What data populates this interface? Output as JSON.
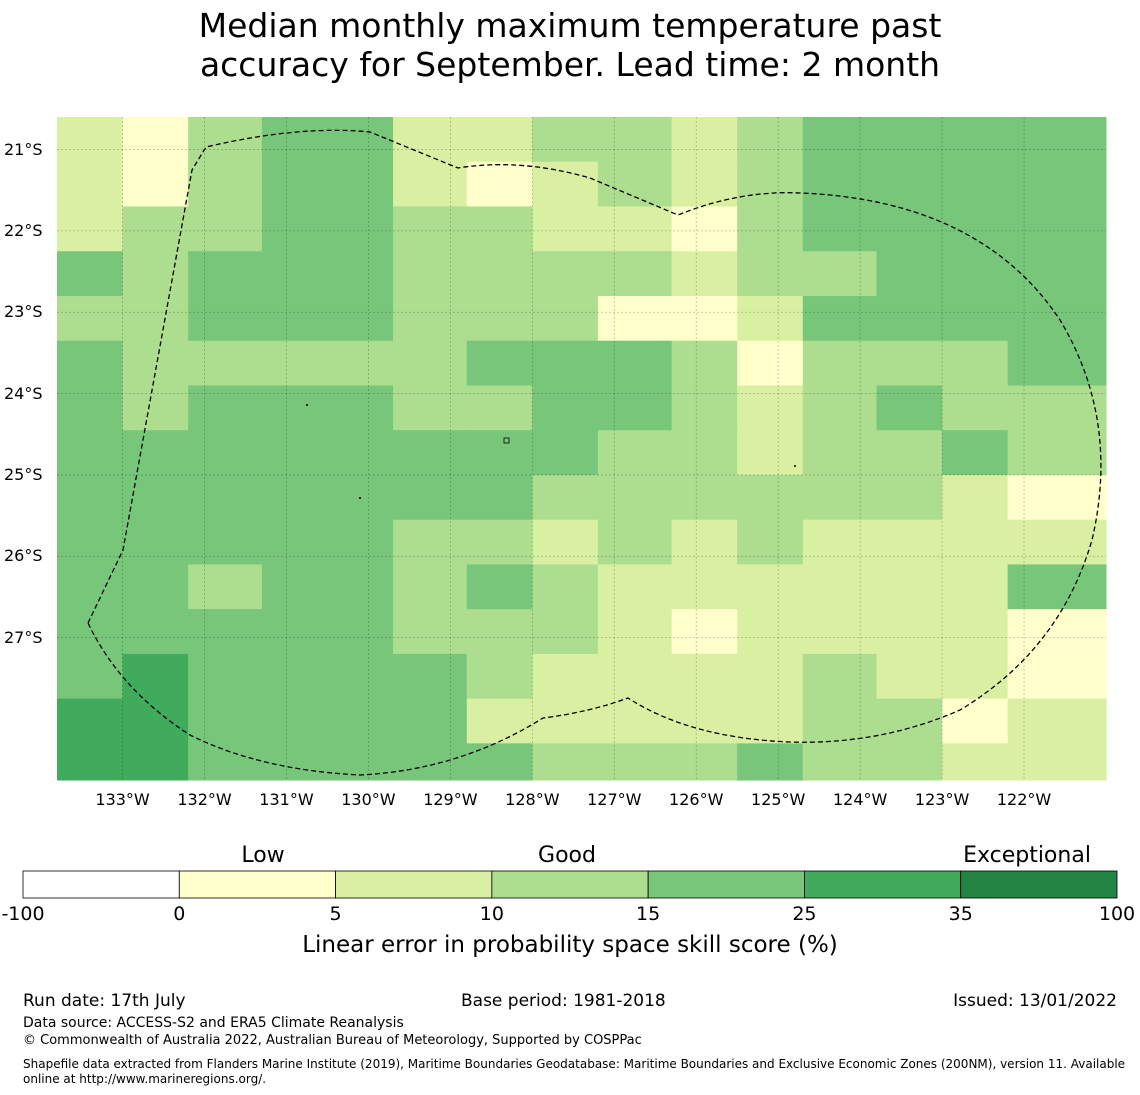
{
  "title_line1": "Median monthly maximum temperature past",
  "title_line2": "accuracy for September. Lead time: 2 month",
  "map": {
    "lat_labels": [
      "21°S",
      "22°S",
      "23°S",
      "24°S",
      "25°S",
      "26°S",
      "27°S"
    ],
    "lat_values": [
      -21,
      -22,
      -23,
      -24,
      -25,
      -26,
      -27
    ],
    "lon_labels": [
      "133°W",
      "132°W",
      "131°W",
      "130°W",
      "129°W",
      "128°W",
      "127°W",
      "126°W",
      "125°W",
      "124°W",
      "123°W",
      "122°W"
    ],
    "lon_values": [
      -133,
      -132,
      -131,
      -130,
      -129,
      -128,
      -127,
      -126,
      -125,
      -124,
      -123,
      -122
    ],
    "extent": {
      "lon_min": -133.8,
      "lon_max": -121.0,
      "lat_top": -20.6,
      "lat_bottom": -28.75
    },
    "grid_lon_edges": [
      -133.8,
      -133.0,
      -132.2,
      -131.3,
      -130.5,
      -129.7,
      -128.8,
      -128.0,
      -127.2,
      -126.3,
      -125.5,
      -124.7,
      -123.8,
      -123.0,
      -122.2,
      -121.0
    ],
    "grid_lat_edges": [
      -20.6,
      -21.15,
      -21.7,
      -22.25,
      -22.8,
      -23.35,
      -23.9,
      -24.45,
      -25.0,
      -25.55,
      -26.1,
      -26.65,
      -27.2,
      -27.75,
      -28.3,
      -28.75
    ],
    "category_grid": [
      [
        2,
        1,
        3,
        4,
        4,
        2,
        2,
        3,
        3,
        2,
        3,
        4,
        4,
        4,
        4
      ],
      [
        2,
        1,
        3,
        4,
        4,
        2,
        1,
        2,
        3,
        2,
        3,
        4,
        4,
        4,
        4
      ],
      [
        2,
        3,
        3,
        4,
        4,
        3,
        3,
        2,
        2,
        1,
        3,
        4,
        4,
        4,
        4
      ],
      [
        4,
        3,
        4,
        4,
        4,
        3,
        3,
        3,
        3,
        2,
        3,
        3,
        4,
        4,
        4
      ],
      [
        3,
        3,
        4,
        4,
        4,
        3,
        3,
        3,
        1,
        1,
        2,
        4,
        4,
        4,
        4
      ],
      [
        4,
        3,
        3,
        3,
        3,
        3,
        4,
        4,
        4,
        3,
        1,
        3,
        3,
        3,
        4
      ],
      [
        4,
        3,
        4,
        4,
        4,
        3,
        3,
        4,
        4,
        3,
        2,
        3,
        4,
        3,
        3
      ],
      [
        4,
        4,
        4,
        4,
        4,
        4,
        4,
        4,
        3,
        3,
        2,
        3,
        3,
        4,
        3
      ],
      [
        4,
        4,
        4,
        4,
        4,
        4,
        4,
        3,
        3,
        3,
        3,
        3,
        3,
        2,
        1
      ],
      [
        4,
        4,
        4,
        4,
        4,
        3,
        3,
        2,
        3,
        2,
        3,
        2,
        2,
        2,
        2
      ],
      [
        4,
        4,
        3,
        4,
        4,
        3,
        4,
        3,
        2,
        2,
        2,
        2,
        2,
        2,
        4
      ],
      [
        4,
        4,
        4,
        4,
        4,
        3,
        3,
        3,
        2,
        1,
        2,
        2,
        2,
        2,
        1
      ],
      [
        4,
        5,
        4,
        4,
        4,
        4,
        3,
        2,
        2,
        2,
        2,
        3,
        2,
        2,
        1
      ],
      [
        5,
        5,
        4,
        4,
        4,
        4,
        2,
        2,
        2,
        2,
        2,
        3,
        3,
        1,
        2
      ],
      [
        5,
        5,
        4,
        4,
        4,
        4,
        4,
        3,
        3,
        3,
        4,
        3,
        3,
        2,
        2
      ]
    ]
  },
  "colorbar": {
    "category_labels": [
      "Low",
      "Good",
      "Exceptional"
    ],
    "tick_labels": [
      "-100",
      "0",
      "5",
      "10",
      "15",
      "25",
      "35",
      "100"
    ],
    "colors": [
      "#ffffff",
      "#ffffcc",
      "#d9f0a3",
      "#addd8e",
      "#78c679",
      "#41ab5d",
      "#238443"
    ],
    "title": "Linear error in probability space skill score (%)"
  },
  "footer": {
    "run_date": "Run date: 17th July",
    "base_period": "Base period: 1981-2018",
    "issued": "Issued: 13/01/2022",
    "data_source": "Data source: ACCESS-S2 and ERA5 Climate Reanalysis",
    "copyright": "© Commonwealth of Australia 2022, Australian Bureau of Meteorology, Supported by COSPPac",
    "shapefile": "Shapefile data extracted from Flanders Marine Institute (2019), Maritime Boundaries Geodatabase: Maritime Boundaries and Exclusive Economic Zones (200NM), version 11. Available online at http://www.marineregions.org/."
  }
}
